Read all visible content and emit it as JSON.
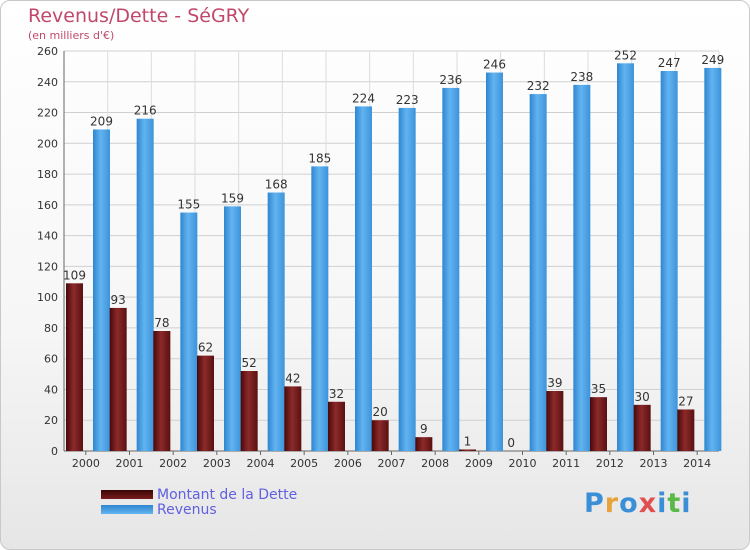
{
  "title": "Revenus/Dette - SéGRY",
  "subtitle": "(en milliers d'€)",
  "logo": {
    "letters": [
      "P",
      "r",
      "o",
      "x",
      "i",
      "t",
      "i"
    ],
    "colors": [
      "#3a8fd6",
      "#e8a23a",
      "#3a8fd6",
      "#e05050",
      "#3a8fd6",
      "#58b848",
      "#3a8fd6"
    ]
  },
  "chart_data": {
    "type": "bar",
    "categories": [
      "2000",
      "2001",
      "2002",
      "2003",
      "2004",
      "2005",
      "2006",
      "2007",
      "2008",
      "2009",
      "2010",
      "2011",
      "2012",
      "2013",
      "2014"
    ],
    "series": [
      {
        "name": "Montant de la Dette",
        "color": "#7a1c1c",
        "values": [
          109,
          93,
          78,
          62,
          52,
          42,
          32,
          20,
          9,
          1,
          0,
          39,
          35,
          30,
          27
        ]
      },
      {
        "name": "Revenus",
        "color": "#4aa3e8",
        "values": [
          209,
          216,
          155,
          159,
          168,
          185,
          224,
          223,
          236,
          246,
          232,
          238,
          252,
          247,
          249
        ]
      }
    ],
    "ylim": [
      0,
      260
    ],
    "yticks": [
      0,
      20,
      40,
      60,
      80,
      100,
      120,
      140,
      160,
      180,
      200,
      220,
      240,
      260
    ],
    "grid": true,
    "legend": "bottom-left"
  }
}
